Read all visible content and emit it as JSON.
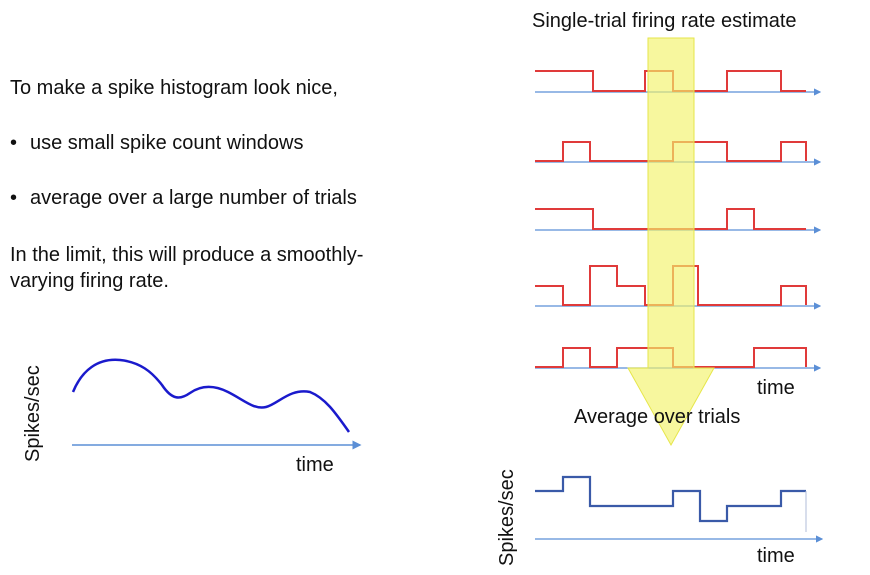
{
  "left": {
    "intro": "To make a spike histogram look nice,",
    "bullets": [
      "use small spike count windows",
      "average over a large number of trials"
    ],
    "conclusion_line1": "In the limit, this will produce a smoothly-",
    "conclusion_line2": "varying firing rate.",
    "plot": {
      "ylabel": "Spikes/sec",
      "xlabel": "time"
    }
  },
  "right": {
    "top_title": "Single-trial firing rate estimate",
    "top_xlabel": "time",
    "arrow_label": "Average over trials",
    "bottom": {
      "ylabel": "Spikes/sec",
      "xlabel": "time"
    }
  },
  "colors": {
    "trial_traces": "#e03a3a",
    "axis": "#5b8fd6",
    "smooth_curve": "#1a1acc",
    "average_trace": "#3a5aa8",
    "highlight_arrow": "#f3f36a"
  }
}
